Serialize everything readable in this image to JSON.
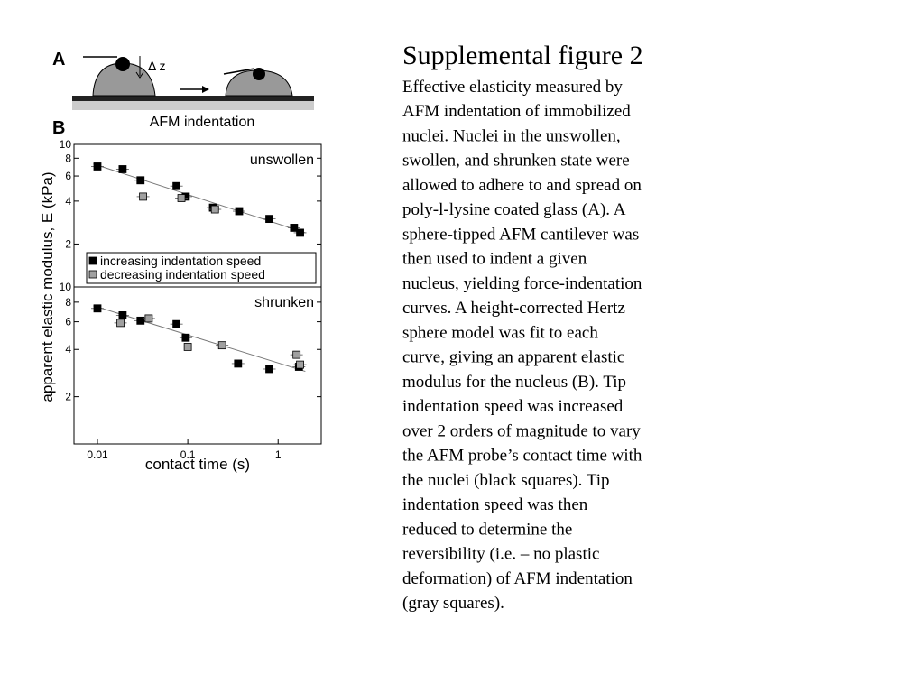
{
  "panel_a": {
    "label": "A",
    "delta_label": "Δ z",
    "caption": "AFM indentation"
  },
  "panel_b": {
    "label": "B",
    "y_label": "apparent elastic modulus, E (kPa)"
  },
  "text": {
    "title": "Supplemental figure 2",
    "body_lines": [
      "Effective elasticity measured by",
      "AFM indentation of immobilized",
      "nuclei. Nuclei in the unswollen,",
      "swollen, and shrunken state were",
      "allowed to adhere to and spread on",
      "poly-l-lysine coated glass (A). A",
      "sphere-tipped AFM cantilever was",
      "then used to indent a given",
      "nucleus, yielding force-indentation",
      "curves.  A height-corrected Hertz",
      "sphere model was fit to each",
      "curve, giving an apparent elastic",
      "modulus for the nucleus (B). Tip",
      "indentation speed was increased",
      "over 2 orders of magnitude to vary",
      "the AFM probe’s contact time with",
      "the nuclei (black squares). Tip",
      "indentation speed was then",
      "reduced to determine the",
      "reversibility (i.e. – no plastic",
      "deformation) of AFM indentation",
      "(gray squares)."
    ]
  },
  "chart_data": [
    {
      "type": "scatter",
      "title": "unswollen",
      "xlog": true,
      "ylog": true,
      "xlim": [
        0.0055,
        3
      ],
      "ylim": [
        1,
        10
      ],
      "yticks": [
        2,
        4,
        6,
        8,
        10
      ],
      "legend": "lower right",
      "series": [
        {
          "name": "increasing indentation speed",
          "color": "#000000",
          "x": [
            0.01,
            0.019,
            0.03,
            0.075,
            0.095,
            0.19,
            0.37,
            0.8,
            1.5,
            1.75
          ],
          "values": [
            7.0,
            6.7,
            5.6,
            5.1,
            4.3,
            3.6,
            3.4,
            3.0,
            2.6,
            2.4
          ]
        },
        {
          "name": "decreasing indentation speed",
          "color": "#a0a0a0",
          "x": [
            0.032,
            0.085,
            0.2
          ],
          "values": [
            4.3,
            4.2,
            3.5
          ]
        }
      ],
      "fit": {
        "x": [
          0.009,
          2.0
        ],
        "values": [
          7.3,
          2.4
        ]
      }
    },
    {
      "type": "scatter",
      "title": "shrunken",
      "xlog": true,
      "ylog": true,
      "xlim": [
        0.0055,
        3
      ],
      "ylim": [
        1,
        10
      ],
      "yticks": [
        2,
        4,
        6,
        8,
        10
      ],
      "xticks": [
        0.01,
        0.1,
        1
      ],
      "x_label": "contact time (s)",
      "series": [
        {
          "color": "#000000",
          "x": [
            0.01,
            0.019,
            0.03,
            0.075,
            0.095,
            0.36,
            0.8,
            1.7
          ],
          "values": [
            7.3,
            6.6,
            6.1,
            5.8,
            4.75,
            3.25,
            3.0,
            3.1
          ]
        },
        {
          "color": "#a0a0a0",
          "x": [
            0.018,
            0.037,
            0.1,
            0.24,
            1.6,
            1.75
          ],
          "values": [
            5.9,
            6.3,
            4.15,
            4.25,
            3.7,
            3.2
          ]
        }
      ],
      "fit": {
        "x": [
          0.009,
          2.0
        ],
        "values": [
          7.6,
          2.9
        ]
      }
    }
  ]
}
